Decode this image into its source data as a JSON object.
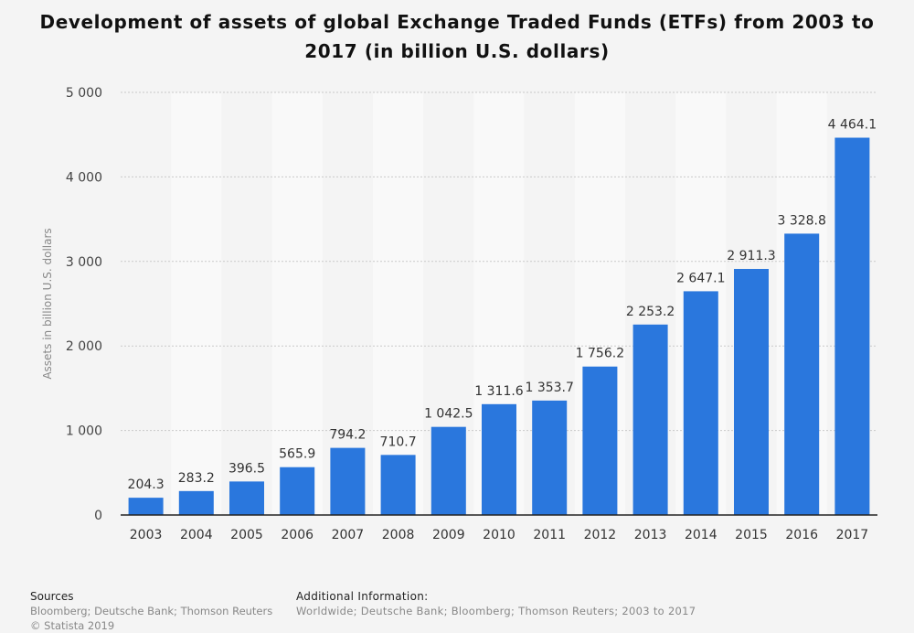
{
  "chart_data": {
    "type": "bar",
    "title": "Development of assets of global Exchange Traded Funds (ETFs) from 2003 to 2017 (in billion U.S. dollars)",
    "ylabel": "Assets in billion U.S. dollars",
    "xlabel": "",
    "categories": [
      "2003",
      "2004",
      "2005",
      "2006",
      "2007",
      "2008",
      "2009",
      "2010",
      "2011",
      "2012",
      "2013",
      "2014",
      "2015",
      "2016",
      "2017"
    ],
    "values": [
      204.3,
      283.2,
      396.5,
      565.9,
      794.2,
      710.7,
      1042.5,
      1311.6,
      1353.7,
      1756.2,
      2253.2,
      2647.1,
      2911.3,
      3328.8,
      4464.1
    ],
    "value_labels": [
      "204.3",
      "283.2",
      "396.5",
      "565.9",
      "794.2",
      "710.7",
      "1 042.5",
      "1 311.6",
      "1 353.7",
      "1 756.2",
      "2 253.2",
      "2 647.1",
      "2 911.3",
      "3 328.8",
      "4 464.1"
    ],
    "yticks": [
      0,
      1000,
      2000,
      3000,
      4000,
      5000
    ],
    "ytick_labels": [
      "0",
      "1 000",
      "2 000",
      "3 000",
      "4 000",
      "5 000"
    ],
    "ylim": [
      0,
      5000
    ],
    "grid": true,
    "bar_color": "#2a77dd"
  },
  "footer": {
    "sources_heading": "Sources",
    "sources_text": "Bloomberg; Deutsche Bank; Thomson Reuters",
    "copyright": "© Statista 2019",
    "additional_heading": "Additional Information:",
    "additional_text": "Worldwide; Deutsche Bank; Bloomberg; Thomson Reuters; 2003 to 2017"
  }
}
